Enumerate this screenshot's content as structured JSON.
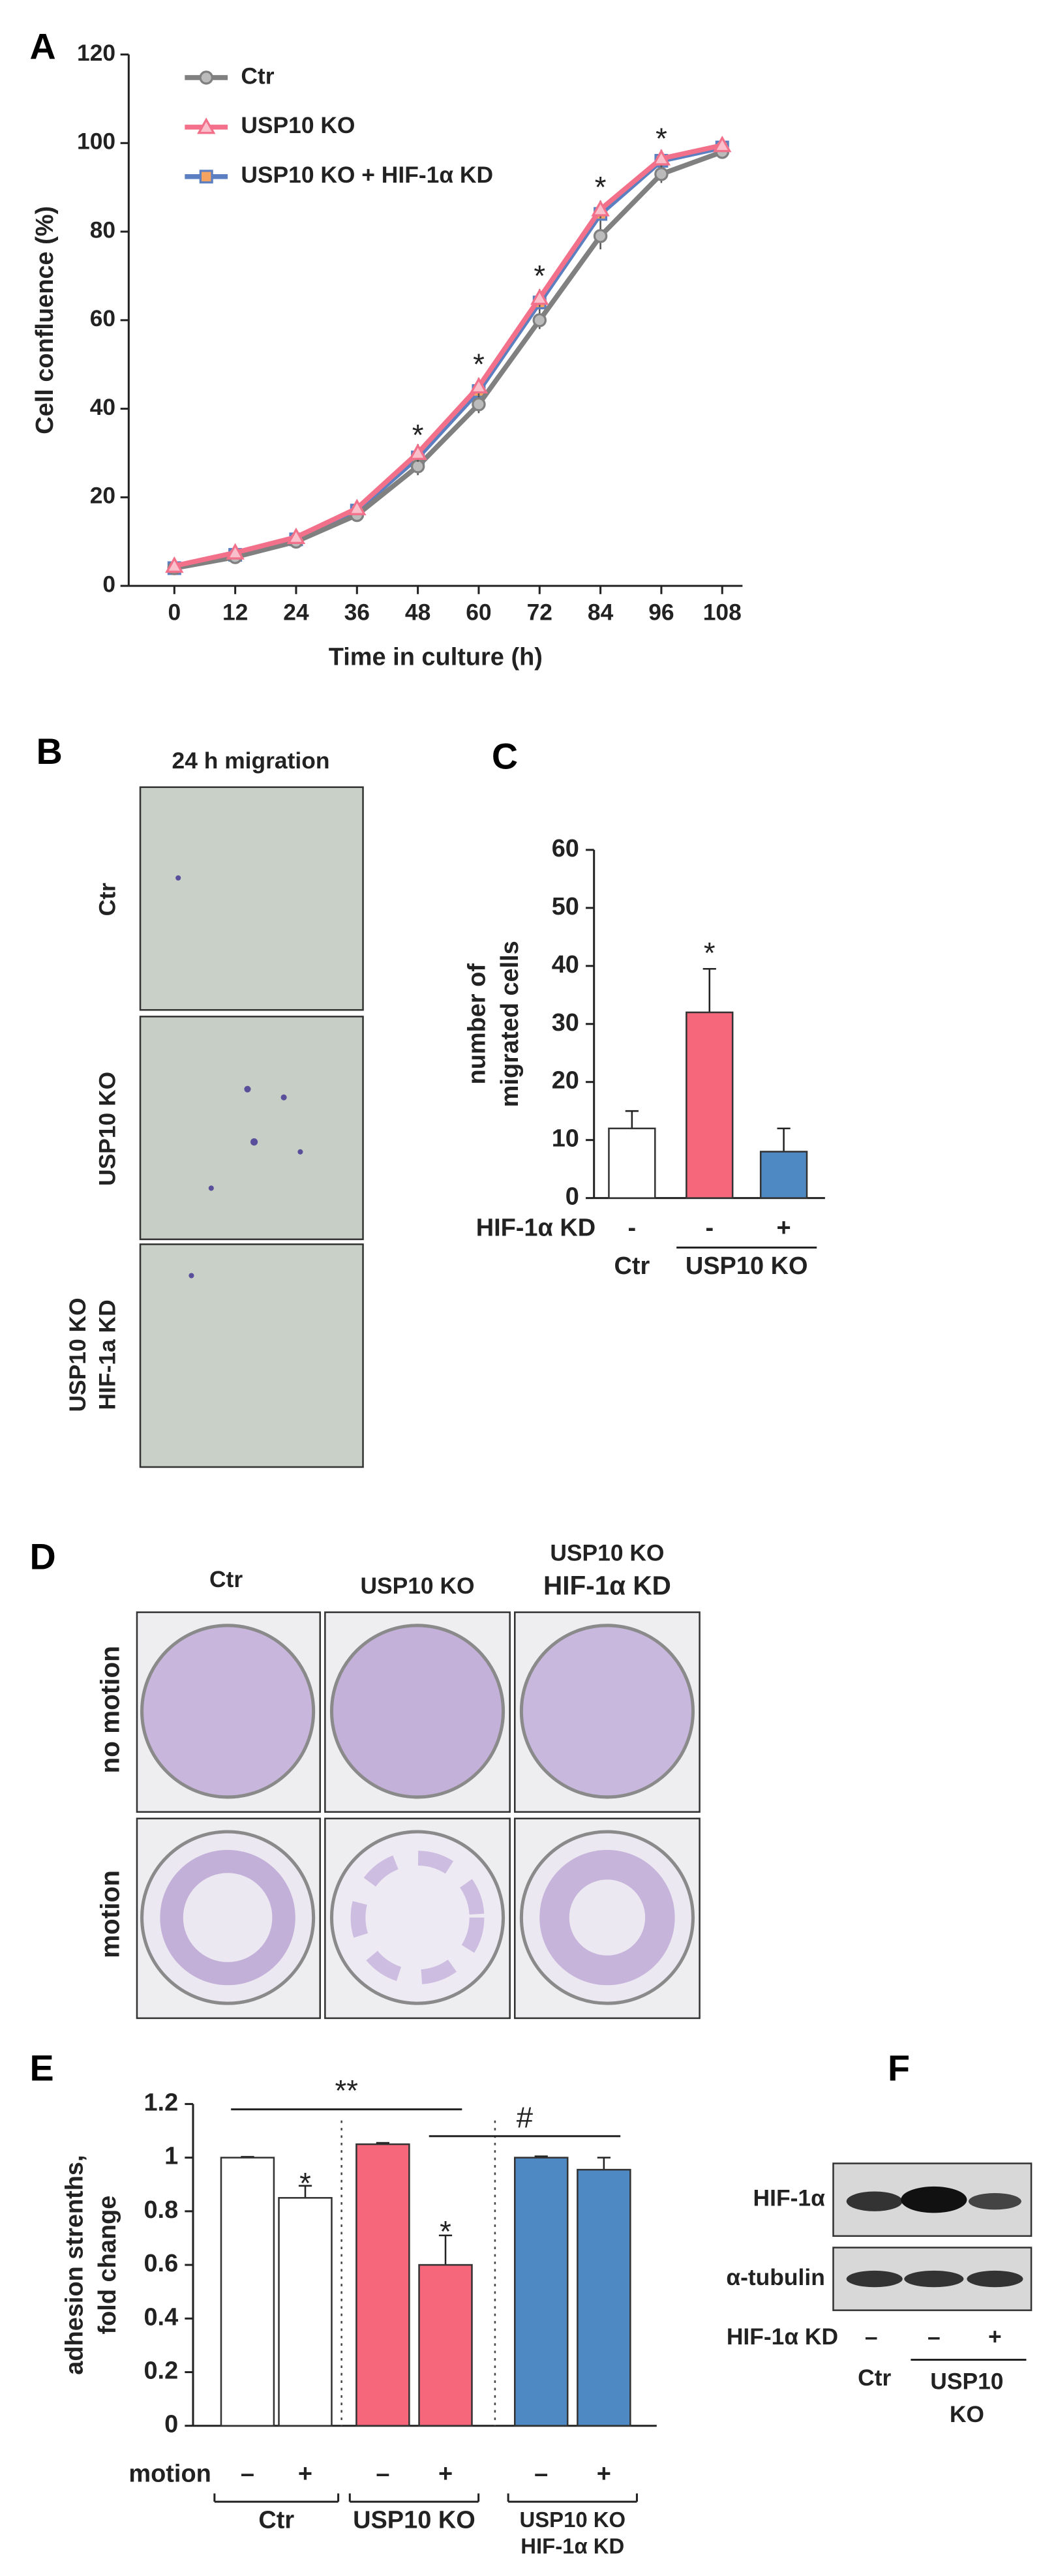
{
  "panel_letters": [
    "A",
    "B",
    "C",
    "D",
    "E",
    "F"
  ],
  "migration": {
    "title": "24 h migration",
    "rows": [
      [
        "Ctr"
      ],
      [
        "USP10 KO"
      ],
      [
        "USP10 KO",
        "HIF-1a KD"
      ]
    ]
  },
  "adhesion_assay": {
    "columns": [
      [
        "Ctr"
      ],
      [
        "USP10 KO"
      ],
      [
        "USP10 KO",
        "HIF-1α KD"
      ]
    ],
    "rows": [
      "no motion",
      "motion"
    ]
  },
  "western_blot": {
    "bands": [
      "HIF-1α",
      "α-tubulin"
    ],
    "row_label": "HIF-1α KD",
    "lanes": [
      "–",
      "–",
      "+"
    ],
    "groups": [
      [
        "Ctr"
      ],
      [
        "USP10",
        "KO"
      ]
    ]
  },
  "chart_data": [
    {
      "type": "line",
      "x_label": "Time in culture (h)",
      "y_label": "Cell confluence (%)",
      "x": [
        0,
        12,
        24,
        36,
        48,
        60,
        72,
        84,
        96,
        108
      ],
      "xlim": [
        -9,
        112
      ],
      "xticks": [
        0,
        12,
        24,
        36,
        48,
        60,
        72,
        84,
        96,
        108
      ],
      "ylim": [
        0,
        120
      ],
      "yticks": [
        0,
        20,
        40,
        60,
        80,
        100,
        120
      ],
      "legend": "top-left",
      "series": [
        {
          "name": "Ctr",
          "color": "#808080",
          "marker": "circle",
          "values": [
            4,
            6.5,
            10,
            16,
            27,
            41,
            60,
            79,
            93,
            98
          ],
          "errors": [
            1,
            1,
            1,
            1,
            2,
            2,
            2,
            3,
            2,
            1
          ]
        },
        {
          "name": "USP10 KO",
          "color": "#f2708a",
          "marker": "triangle",
          "values": [
            4.5,
            7.5,
            11,
            17.5,
            30,
            45,
            65,
            85,
            96.5,
            99.5
          ],
          "errors": [
            1,
            1,
            1,
            1,
            2,
            2,
            2,
            2,
            2,
            1
          ]
        },
        {
          "name": "USP10 KO + HIF-1α KD",
          "color": "#5b7fc0",
          "marker": "square",
          "values": [
            4,
            7,
            10.5,
            17,
            29,
            44,
            64,
            84,
            96,
            99
          ],
          "errors": [
            1,
            1,
            1,
            1,
            2,
            2,
            2,
            2,
            2,
            1
          ]
        }
      ],
      "annotations": [
        {
          "text": "*",
          "x": 48,
          "y": 35
        },
        {
          "text": "*",
          "x": 60,
          "y": 51
        },
        {
          "text": "*",
          "x": 72,
          "y": 71
        },
        {
          "text": "*",
          "x": 84,
          "y": 91
        },
        {
          "text": "*",
          "x": 96,
          "y": 102
        }
      ]
    },
    {
      "type": "bar",
      "y_label": [
        "number of",
        "migrated cells"
      ],
      "row_label": "HIF-1α KD",
      "categories": [
        "-",
        "-",
        "+"
      ],
      "groups": [
        [
          "Ctr"
        ],
        [
          "USP10 KO"
        ]
      ],
      "values": [
        12,
        32,
        8
      ],
      "errors": [
        3,
        7.5,
        4
      ],
      "colors": [
        "#ffffff",
        "#f7677c",
        "#4f89c4"
      ],
      "ylim": [
        0,
        60
      ],
      "yticks": [
        0,
        10,
        20,
        30,
        40,
        50,
        60
      ],
      "annotations": [
        {
          "text": "*",
          "x": 1,
          "y": 43
        }
      ]
    },
    {
      "type": "bar",
      "y_label": [
        "adhesion strenths,",
        "fold change"
      ],
      "row_label": "motion",
      "categories": [
        "–",
        "+",
        "–",
        "+",
        "–",
        "+"
      ],
      "groups": [
        [
          "Ctr"
        ],
        [
          "USP10 KO"
        ],
        [
          "USP10 KO",
          "HIF-1α KD"
        ]
      ],
      "values": [
        1,
        0.85,
        1.05,
        0.6,
        1.0,
        0.955
      ],
      "errors": [
        0.003,
        0.045,
        0.005,
        0.11,
        0.005,
        0.045
      ],
      "colors": [
        "#ffffff",
        "#ffffff",
        "#f7677c",
        "#f7677c",
        "#4f89c4",
        "#4f89c4"
      ],
      "ylim": [
        0,
        1.2
      ],
      "yticks": [
        0,
        0.2,
        0.4,
        0.6,
        0.8,
        1,
        1.2
      ],
      "annotations": [
        {
          "text": "*",
          "x": 1,
          "y": 0.92
        },
        {
          "text": "*",
          "x": 3,
          "y": 0.74
        }
      ],
      "brackets": [
        {
          "text": "**",
          "from": 0,
          "to": 3,
          "y": 1.18
        },
        {
          "text": "#",
          "from": 3,
          "to": 5,
          "y": 1.08
        }
      ]
    }
  ]
}
